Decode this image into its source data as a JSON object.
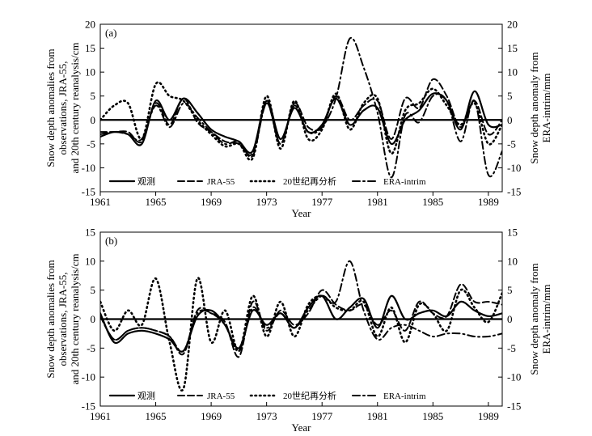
{
  "chart_data": [
    {
      "panel_label": "(a)",
      "type": "line",
      "xlabel": "Year",
      "ylabel_left": [
        "Snow depth anomalies from",
        "observations, JRA-55,",
        "and 20th century reanalysis/cm"
      ],
      "ylabel_right": [
        "Snow depth anomaly from",
        "ERA-intrim/mm"
      ],
      "xlim": [
        1961,
        1990
      ],
      "ylim_left": [
        -15,
        20
      ],
      "ylim_right": [
        -15,
        20
      ],
      "xticks": [
        1961,
        1965,
        1969,
        1973,
        1977,
        1981,
        1985,
        1989
      ],
      "yticks_left": [
        -15,
        -10,
        -5,
        0,
        5,
        10,
        15,
        20
      ],
      "yticks_right": [
        -15,
        -10,
        -5,
        0,
        5,
        10,
        15,
        20
      ],
      "legend_position": "bottom",
      "series": [
        {
          "name": "观测",
          "style": "solid",
          "x": [
            1961,
            1962,
            1963,
            1964,
            1965,
            1966,
            1967,
            1968,
            1969,
            1970,
            1971,
            1972,
            1973,
            1974,
            1975,
            1976,
            1977,
            1978,
            1979,
            1980,
            1981,
            1982,
            1983,
            1984,
            1985,
            1986,
            1987,
            1988,
            1989,
            1990
          ],
          "y": [
            -3.5,
            -2.5,
            -3,
            -5,
            4,
            0,
            4.5,
            1.5,
            -2,
            -3.5,
            -4.5,
            -6.5,
            4,
            -4,
            2.5,
            -2.5,
            -1,
            4.5,
            -1,
            2,
            2.5,
            -5,
            0,
            2,
            5.5,
            4,
            -2,
            6,
            -1,
            -1
          ]
        },
        {
          "name": "JRA-55",
          "style": "dashed",
          "x": [
            1961,
            1962,
            1963,
            1964,
            1965,
            1966,
            1967,
            1968,
            1969,
            1970,
            1971,
            1972,
            1973,
            1974,
            1975,
            1976,
            1977,
            1978,
            1979,
            1980,
            1981,
            1982,
            1983,
            1984,
            1985,
            1986,
            1987,
            1988,
            1989,
            1990
          ],
          "y": [
            -2.5,
            -2.5,
            -2.5,
            -4.5,
            3.5,
            -1,
            4.5,
            -0.5,
            -2.5,
            -4.5,
            -5,
            -7,
            3.5,
            -5,
            3.5,
            -1.5,
            -1.5,
            5,
            0,
            3,
            4,
            -4,
            4.5,
            2.5,
            8.5,
            5,
            -1.5,
            4,
            -3,
            0
          ]
        },
        {
          "name": "20世纪再分析",
          "style": "dotted",
          "x": [
            1961,
            1962,
            1963,
            1964,
            1965,
            1966,
            1967,
            1968,
            1969,
            1970,
            1971,
            1972,
            1973,
            1974,
            1975,
            1976,
            1977,
            1978,
            1979,
            1980,
            1981,
            1982,
            1983,
            1984,
            1985,
            1986,
            1987,
            1988,
            1989,
            1990
          ],
          "y": [
            0,
            3,
            3.5,
            -4,
            7.5,
            5,
            4,
            0,
            -3,
            -5.5,
            -5,
            -8,
            5,
            -6,
            4,
            -4,
            -2,
            5.5,
            -2,
            3.5,
            4.5,
            -7,
            2,
            3.5,
            6.5,
            3,
            -1,
            3.5,
            -5,
            -1
          ]
        }
      ],
      "secondary_series": [
        {
          "name": "ERA-intrim",
          "style": "dashdot",
          "x": [
            1961,
            1962,
            1963,
            1964,
            1965,
            1966,
            1967,
            1968,
            1969,
            1970,
            1971,
            1972,
            1973,
            1974,
            1975,
            1976,
            1977,
            1978,
            1979,
            1980,
            1981,
            1982,
            1983,
            1984,
            1985,
            1986,
            1987,
            1988,
            1989,
            1990
          ],
          "y": [
            -3,
            -2.5,
            -3,
            -4,
            3,
            -1.5,
            3.5,
            0.5,
            -2.5,
            -5,
            -4.5,
            -7.5,
            3.5,
            -5,
            3,
            -2.5,
            -1.5,
            4.5,
            17,
            11,
            1.5,
            -12,
            1,
            -0.5,
            5,
            4,
            -4.5,
            4,
            -11.5,
            -6.5
          ]
        }
      ]
    },
    {
      "panel_label": "(b)",
      "type": "line",
      "xlabel": "Year",
      "ylabel_left": [
        "Snow depth anomalies from",
        "observations, JRA-55,",
        "and 20th century reanalysis/cm"
      ],
      "ylabel_right": [
        "Snow depth anomaly from",
        "ERA-intrim/mm"
      ],
      "xlim": [
        1961,
        1990
      ],
      "ylim_left": [
        -15,
        15
      ],
      "ylim_right": [
        -15,
        15
      ],
      "xticks": [
        1961,
        1965,
        1969,
        1973,
        1977,
        1981,
        1985,
        1989
      ],
      "yticks_left": [
        -15,
        -10,
        -5,
        0,
        5,
        10,
        15
      ],
      "yticks_right": [
        -15,
        -10,
        -5,
        0,
        5,
        10,
        15
      ],
      "legend_position": "bottom",
      "series": [
        {
          "name": "观测",
          "style": "solid",
          "x": [
            1961,
            1962,
            1963,
            1964,
            1965,
            1966,
            1967,
            1968,
            1969,
            1970,
            1971,
            1972,
            1973,
            1974,
            1975,
            1976,
            1977,
            1978,
            1979,
            1980,
            1981,
            1982,
            1983,
            1984,
            1985,
            1986,
            1987,
            1988,
            1989,
            1990
          ],
          "y": [
            1,
            -4,
            -2.5,
            -2,
            -2.5,
            -3.5,
            -5.5,
            0.5,
            1.5,
            -1,
            -5,
            1.5,
            -1,
            1,
            -1.5,
            2,
            4,
            0,
            2,
            3.5,
            -1.5,
            4,
            0,
            1,
            1.5,
            0.5,
            3,
            1.5,
            0.5,
            1
          ]
        },
        {
          "name": "JRA-55",
          "style": "dashed",
          "x": [
            1961,
            1962,
            1963,
            1964,
            1965,
            1966,
            1967,
            1968,
            1969,
            1970,
            1971,
            1972,
            1973,
            1974,
            1975,
            1976,
            1977,
            1978,
            1979,
            1980,
            1981,
            1982,
            1983,
            1984,
            1985,
            1986,
            1987,
            1988,
            1989,
            1990
          ],
          "y": [
            0.5,
            -3.5,
            -2,
            -1.5,
            -2,
            -3,
            -6,
            1.5,
            1,
            -0.5,
            -6.5,
            3,
            -2,
            1.5,
            -1,
            1,
            5,
            2.5,
            1.5,
            2.5,
            -1,
            1.5,
            -2,
            3,
            1,
            0.5,
            6,
            3,
            3,
            2.5
          ]
        },
        {
          "name": "20世纪再分析",
          "style": "dotted",
          "x": [
            1961,
            1962,
            1963,
            1964,
            1965,
            1966,
            1967,
            1968,
            1969,
            1970,
            1971,
            1972,
            1973,
            1974,
            1975,
            1976,
            1977,
            1978,
            1979,
            1980,
            1981,
            1982,
            1983,
            1984,
            1985,
            1986,
            1987,
            1988,
            1989,
            1990
          ],
          "y": [
            3,
            -2,
            1.5,
            -1,
            7,
            -4,
            -12,
            7,
            -4,
            1.5,
            -5.5,
            4,
            -3,
            3,
            -3,
            2.5,
            4,
            2,
            1.5,
            3,
            -3,
            2,
            -4,
            2.5,
            1,
            -2,
            5,
            2,
            -0.5,
            4.5
          ]
        }
      ],
      "secondary_series": [
        {
          "name": "ERA-intrim",
          "style": "dashdot",
          "x": [
            1961,
            1962,
            1963,
            1964,
            1965,
            1966,
            1967,
            1968,
            1969,
            1970,
            1971,
            1972,
            1973,
            1974,
            1975,
            1976,
            1977,
            1978,
            1979,
            1980,
            1981,
            1982,
            1983,
            1984,
            1985,
            1986,
            1987,
            1988,
            1989,
            1990
          ],
          "y": [
            0.5,
            -3.5,
            -2,
            -1.5,
            -2,
            -3,
            -5.5,
            1,
            1,
            -1,
            -5.5,
            2,
            -1.5,
            1,
            -1.5,
            1.5,
            4,
            3,
            10,
            1.5,
            -3.5,
            -1.5,
            -1,
            -2,
            -3,
            -2.5,
            -2.5,
            -3,
            -3,
            -2.5
          ]
        }
      ]
    }
  ]
}
